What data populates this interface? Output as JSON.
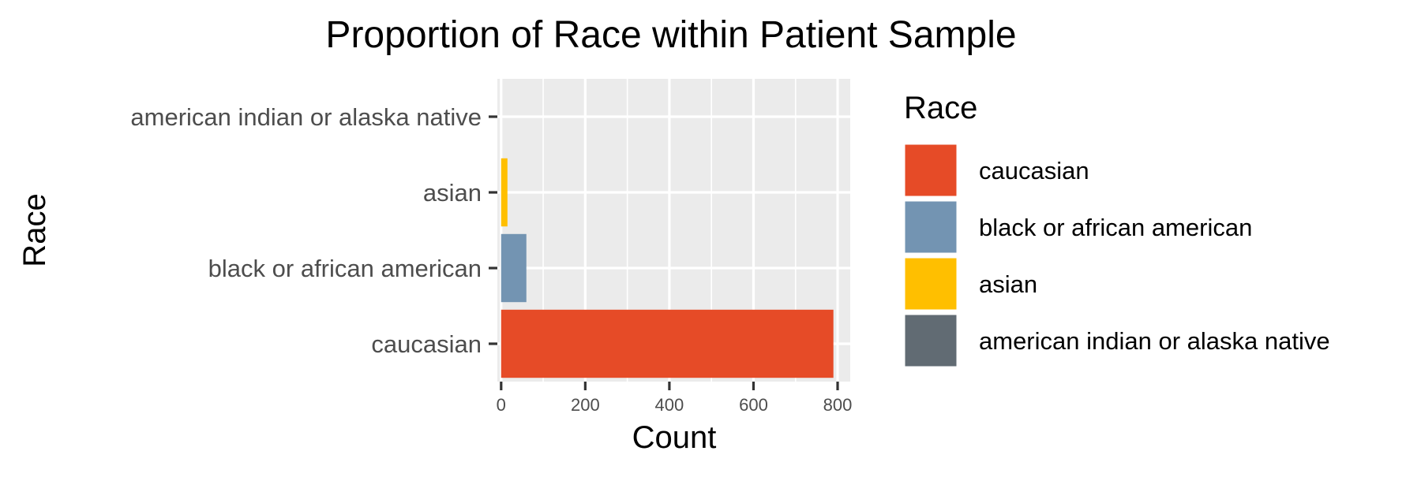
{
  "chart_data": {
    "type": "bar",
    "orientation": "horizontal",
    "title": "Proportion of Race within Patient Sample",
    "xlabel": "Count",
    "ylabel": "Race",
    "categories": [
      "caucasian",
      "black or african american",
      "asian",
      "american indian or alaska native"
    ],
    "values": [
      790,
      60,
      15,
      0
    ],
    "colors": [
      "#E64B27",
      "#7394B2",
      "#FFBF00",
      "#616B73"
    ],
    "xlim": [
      -9,
      830
    ],
    "xticks": [
      0,
      200,
      400,
      600,
      800
    ],
    "grid": true,
    "panel_background": "#EBEBEB",
    "legend": {
      "title": "Race",
      "position": "right",
      "entries": [
        "caucasian",
        "black or african american",
        "asian",
        "american indian or alaska native"
      ]
    }
  }
}
